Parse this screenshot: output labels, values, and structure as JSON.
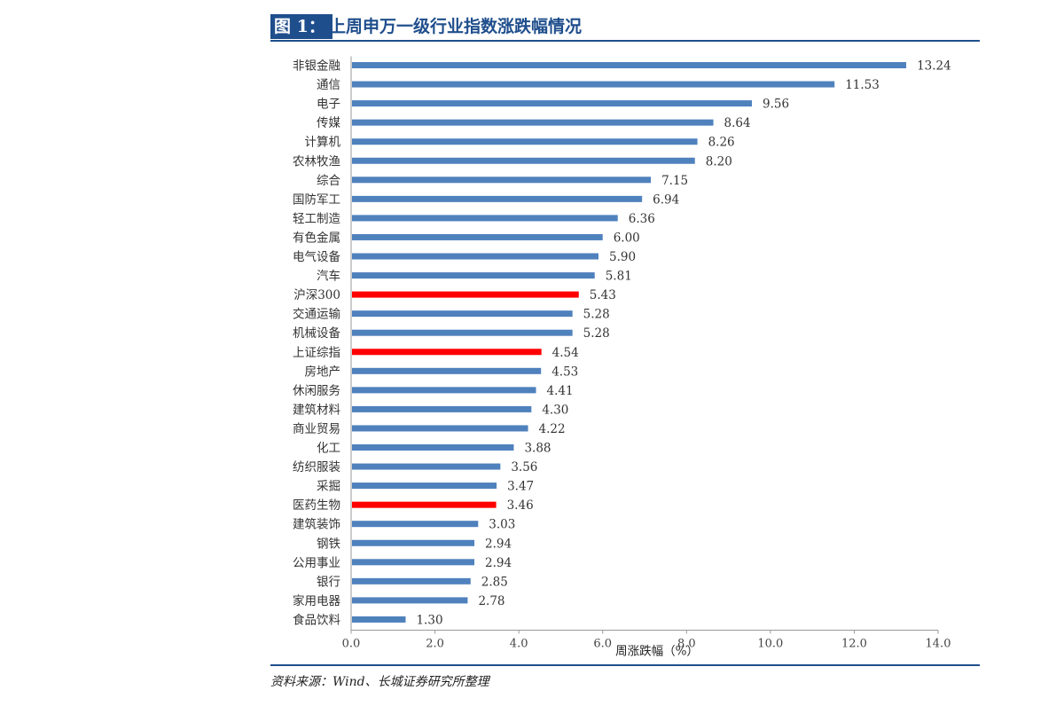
{
  "header": {
    "label": "图 1：",
    "title": "上周申万一级行业指数涨跌幅情况"
  },
  "source": "资料来源：Wind、长城证券研究所整理",
  "colors": {
    "bar_default": "#4f81bd",
    "bar_highlight": "#ff0000",
    "header_blue": "#1f4e8c"
  },
  "chart_data": {
    "type": "bar",
    "orientation": "horizontal",
    "xlabel": "周涨跌幅（%）",
    "xlim": [
      0,
      14
    ],
    "xticks": [
      "0.0",
      "2.0",
      "4.0",
      "6.0",
      "8.0",
      "10.0",
      "12.0",
      "14.0"
    ],
    "categories": [
      "非银金融",
      "通信",
      "电子",
      "传媒",
      "计算机",
      "农林牧渔",
      "综合",
      "国防军工",
      "轻工制造",
      "有色金属",
      "电气设备",
      "汽车",
      "沪深300",
      "交通运输",
      "机械设备",
      "上证综指",
      "房地产",
      "休闲服务",
      "建筑材料",
      "商业贸易",
      "化工",
      "纺织服装",
      "采掘",
      "医药生物",
      "建筑装饰",
      "钢铁",
      "公用事业",
      "银行",
      "家用电器",
      "食品饮料"
    ],
    "values": [
      13.24,
      11.53,
      9.56,
      8.64,
      8.26,
      8.2,
      7.15,
      6.94,
      6.36,
      6.0,
      5.9,
      5.81,
      5.43,
      5.28,
      5.28,
      4.54,
      4.53,
      4.41,
      4.3,
      4.22,
      3.88,
      3.56,
      3.47,
      3.46,
      3.03,
      2.94,
      2.94,
      2.85,
      2.78,
      1.3
    ],
    "value_labels": [
      "13.24",
      "11.53",
      "9.56",
      "8.64",
      "8.26",
      "8.20",
      "7.15",
      "6.94",
      "6.36",
      "6.00",
      "5.90",
      "5.81",
      "5.43",
      "5.28",
      "5.28",
      "4.54",
      "4.53",
      "4.41",
      "4.30",
      "4.22",
      "3.88",
      "3.56",
      "3.47",
      "3.46",
      "3.03",
      "2.94",
      "2.94",
      "2.85",
      "2.78",
      "1.30"
    ],
    "highlighted": [
      "沪深300",
      "上证综指",
      "医药生物"
    ],
    "grid": false,
    "legend": "none"
  }
}
